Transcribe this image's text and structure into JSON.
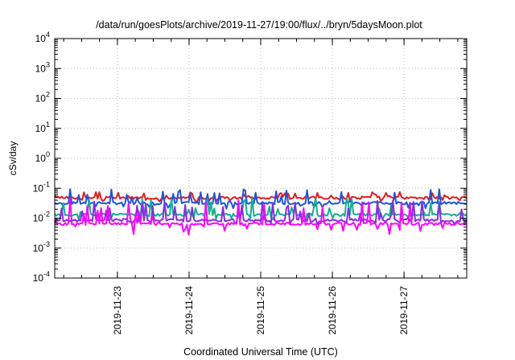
{
  "chart_data": {
    "type": "line",
    "title": "/data/run/goesPlots/archive/2019-11-27/19:00/flux/../bryn/5daysMoon.plot",
    "xlabel": "Coordinated Universal Time (UTC)",
    "ylabel": "cSv/day",
    "y_scale": "log",
    "ylim": [
      0.0001,
      10000
    ],
    "x_range": [
      "2019-11-22 03:00",
      "2019-11-27 21:00"
    ],
    "grid": true,
    "legend": "none",
    "y_ticks": [
      {
        "base": "10",
        "exp": "4",
        "value": 10000
      },
      {
        "base": "10",
        "exp": "3",
        "value": 1000
      },
      {
        "base": "10",
        "exp": "2",
        "value": 100
      },
      {
        "base": "10",
        "exp": "1",
        "value": 10
      },
      {
        "base": "10",
        "exp": "0",
        "value": 1
      },
      {
        "base": "10",
        "exp": "-1",
        "value": 0.1
      },
      {
        "base": "10",
        "exp": "-2",
        "value": 0.01
      },
      {
        "base": "10",
        "exp": "-3",
        "value": 0.001
      },
      {
        "base": "10",
        "exp": "-4",
        "value": 0.0001
      }
    ],
    "x_ticks": [
      "2019-11-23",
      "2019-11-24",
      "2019-11-25",
      "2019-11-26",
      "2019-11-27"
    ],
    "series": [
      {
        "color": "#e41a1c",
        "base": 0.048,
        "low": 0.035,
        "high": 0.075,
        "seed": 3
      },
      {
        "color": "#1a55e0",
        "base": 0.032,
        "low": 0.02,
        "high": 0.095,
        "seed": 7
      },
      {
        "color": "#10b090",
        "base": 0.013,
        "low": 0.009,
        "high": 0.05,
        "seed": 11
      },
      {
        "color": "#8a2be2",
        "base": 0.0085,
        "low": 0.006,
        "high": 0.04,
        "seed": 17
      },
      {
        "color": "#ff00ff",
        "base": 0.0065,
        "low": 0.0025,
        "high": 0.045,
        "seed": 23
      }
    ]
  }
}
